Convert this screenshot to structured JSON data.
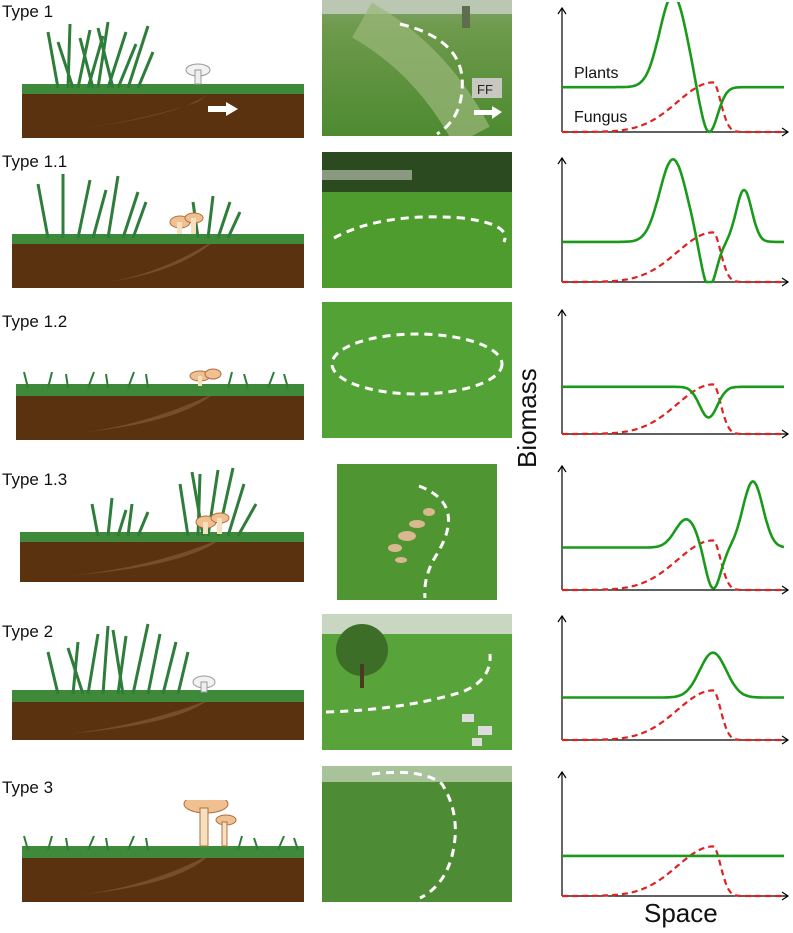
{
  "rows": [
    {
      "label": "Type 1",
      "grass": "tall-left",
      "fungus": "white-small",
      "plant_curve": "peak-dip"
    },
    {
      "label": "Type 1.1",
      "grass": "tall-both",
      "fungus": "tan-cluster",
      "plant_curve": "peak-dip-rise"
    },
    {
      "label": "Type 1.2",
      "grass": "short",
      "fungus": "tan-small",
      "plant_curve": "dip"
    },
    {
      "label": "Type 1.3",
      "grass": "tall-right",
      "fungus": "tan-cluster",
      "plant_curve": "bump-dip-rise"
    },
    {
      "label": "Type 2",
      "grass": "tall-left",
      "fungus": "white-small",
      "plant_curve": "rise"
    },
    {
      "label": "Type 3",
      "grass": "short",
      "fungus": "tan-large",
      "plant_curve": "flat"
    }
  ],
  "photo_annotation": "FF",
  "legend": {
    "plants": "Plants",
    "fungus": "Fungus"
  },
  "axes": {
    "y": "Biomass",
    "x": "Space"
  },
  "colors": {
    "plants": "#1a9a1a",
    "fungus": "#dd2222",
    "soil": "#5a3210",
    "grass": "#2f7d3a"
  }
}
